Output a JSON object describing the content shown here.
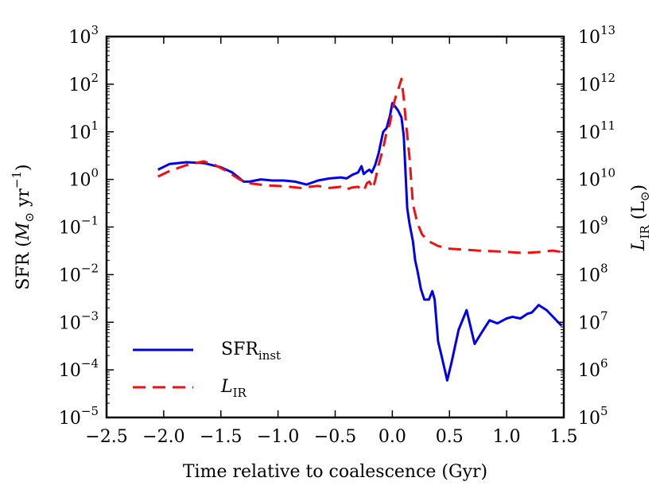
{
  "chart_data": {
    "type": "line",
    "xlabel": "Time relative to coalescence (Gyr)",
    "ylabel": "SFR (M⊙ yr−1)",
    "ylabel_parts": {
      "base": "SFR (",
      "symbol": "M",
      "sub": "⊙",
      "unit": " yr",
      "sup": "−1",
      "close": ")"
    },
    "y2label": "LIR (L⊙)",
    "y2label_parts": {
      "symbol": "L",
      "sub": "IR",
      "rest": " (L",
      "sun": "⊙",
      "close": ")"
    },
    "xlim": [
      -2.5,
      1.5
    ],
    "ylim": [
      1e-05,
      1000
    ],
    "y2lim": [
      100000,
      10000000000000
    ],
    "yscale": "log",
    "y2scale": "log",
    "legend_position": "lower-left",
    "grid": false,
    "x_ticks": [
      {
        "value": -2.5,
        "label": "−2.5"
      },
      {
        "value": -2.0,
        "label": "−2.0"
      },
      {
        "value": -1.5,
        "label": "−1.5"
      },
      {
        "value": -1.0,
        "label": "−1.0"
      },
      {
        "value": -0.5,
        "label": "−0.5"
      },
      {
        "value": 0.0,
        "label": "0.0"
      },
      {
        "value": 0.5,
        "label": "0.5"
      },
      {
        "value": 1.0,
        "label": "1.0"
      },
      {
        "value": 1.5,
        "label": "1.5"
      }
    ],
    "y_ticks": [
      {
        "value": 1e-05,
        "base": "10",
        "exp": "−5"
      },
      {
        "value": 0.0001,
        "base": "10",
        "exp": "−4"
      },
      {
        "value": 0.001,
        "base": "10",
        "exp": "−3"
      },
      {
        "value": 0.01,
        "base": "10",
        "exp": "−2"
      },
      {
        "value": 0.1,
        "base": "10",
        "exp": "−1"
      },
      {
        "value": 1,
        "base": "10",
        "exp": "0"
      },
      {
        "value": 10,
        "base": "10",
        "exp": "1"
      },
      {
        "value": 100,
        "base": "10",
        "exp": "2"
      },
      {
        "value": 1000,
        "base": "10",
        "exp": "3"
      }
    ],
    "y2_ticks": [
      {
        "value": 100000,
        "base": "10",
        "exp": "5"
      },
      {
        "value": 1000000,
        "base": "10",
        "exp": "6"
      },
      {
        "value": 10000000,
        "base": "10",
        "exp": "7"
      },
      {
        "value": 100000000,
        "base": "10",
        "exp": "8"
      },
      {
        "value": 1000000000,
        "base": "10",
        "exp": "9"
      },
      {
        "value": 10000000000,
        "base": "10",
        "exp": "10"
      },
      {
        "value": 100000000000,
        "base": "10",
        "exp": "11"
      },
      {
        "value": 1000000000000,
        "base": "10",
        "exp": "12"
      },
      {
        "value": 10000000000000,
        "base": "10",
        "exp": "13"
      }
    ],
    "series": [
      {
        "name": "SFRinst",
        "label_main": "SFR",
        "label_sub": "inst",
        "axis": "left",
        "color": "#0000ee",
        "style": "solid",
        "x": [
          -2.05,
          -1.95,
          -1.8,
          -1.65,
          -1.5,
          -1.4,
          -1.3,
          -1.25,
          -1.15,
          -1.05,
          -0.95,
          -0.85,
          -0.75,
          -0.65,
          -0.55,
          -0.45,
          -0.4,
          -0.35,
          -0.3,
          -0.27,
          -0.25,
          -0.22,
          -0.2,
          -0.18,
          -0.15,
          -0.12,
          -0.1,
          -0.08,
          -0.05,
          -0.02,
          0.0,
          0.02,
          0.05,
          0.08,
          0.1,
          0.13,
          0.15,
          0.18,
          0.2,
          0.22,
          0.25,
          0.28,
          0.32,
          0.35,
          0.37,
          0.4,
          0.43,
          0.48,
          0.52,
          0.58,
          0.65,
          0.72,
          0.78,
          0.85,
          0.92,
          1.0,
          1.05,
          1.12,
          1.18,
          1.22,
          1.28,
          1.35,
          1.42,
          1.48
        ],
        "values": [
          1.6,
          2.1,
          2.3,
          2.2,
          1.8,
          1.4,
          0.9,
          0.9,
          1.0,
          0.95,
          0.95,
          0.9,
          0.78,
          0.95,
          1.05,
          1.1,
          1.05,
          1.25,
          1.4,
          1.9,
          1.3,
          1.5,
          1.6,
          1.4,
          2.0,
          3.5,
          6.0,
          10.0,
          12.0,
          22.0,
          40.0,
          35.0,
          28.0,
          20.0,
          8.0,
          0.25,
          0.12,
          0.05,
          0.02,
          0.012,
          0.005,
          0.003,
          0.003,
          0.0045,
          0.003,
          0.0004,
          0.0002,
          6e-05,
          0.00015,
          0.0007,
          0.0018,
          0.00035,
          0.0006,
          0.0011,
          0.00095,
          0.0012,
          0.0013,
          0.0012,
          0.0015,
          0.0016,
          0.0023,
          0.0018,
          0.0012,
          0.00085
        ]
      },
      {
        "name": "LIR",
        "label_main": "L",
        "label_sub": "IR",
        "axis": "right",
        "color": "#ee1111",
        "style": "dashed",
        "x": [
          -2.05,
          -1.95,
          -1.8,
          -1.65,
          -1.55,
          -1.45,
          -1.35,
          -1.28,
          -1.2,
          -1.1,
          -1.0,
          -0.9,
          -0.8,
          -0.72,
          -0.65,
          -0.55,
          -0.45,
          -0.4,
          -0.35,
          -0.3,
          -0.25,
          -0.22,
          -0.2,
          -0.17,
          -0.15,
          -0.12,
          -0.08,
          -0.05,
          -0.02,
          0.0,
          0.03,
          0.06,
          0.08,
          0.1,
          0.12,
          0.15,
          0.18,
          0.22,
          0.26,
          0.32,
          0.4,
          0.5,
          0.6,
          0.75,
          0.9,
          1.0,
          1.1,
          1.2,
          1.3,
          1.4,
          1.48
        ],
        "values": [
          11500000000,
          15000000000,
          20000000000,
          24000000000,
          20000000000,
          15000000000,
          10500000000,
          8500000000,
          8000000000,
          7500000000,
          7300000000,
          7000000000,
          6600000000,
          7000000000,
          7300000000,
          6600000000,
          7000000000,
          6200000000,
          6800000000,
          7000000000,
          5800000000,
          8500000000,
          9000000000,
          6500000000,
          9500000000,
          20000000000,
          45000000000,
          100000000000,
          150000000000,
          300000000000,
          550000000000,
          900000000000,
          1300000000000,
          500000000000,
          150000000000,
          30000000000,
          3000000000,
          1200000000,
          700000000,
          500000000,
          400000000,
          350000000,
          340000000,
          320000000,
          310000000,
          300000000,
          290000000,
          290000000,
          300000000,
          320000000,
          300000000
        ]
      }
    ]
  }
}
